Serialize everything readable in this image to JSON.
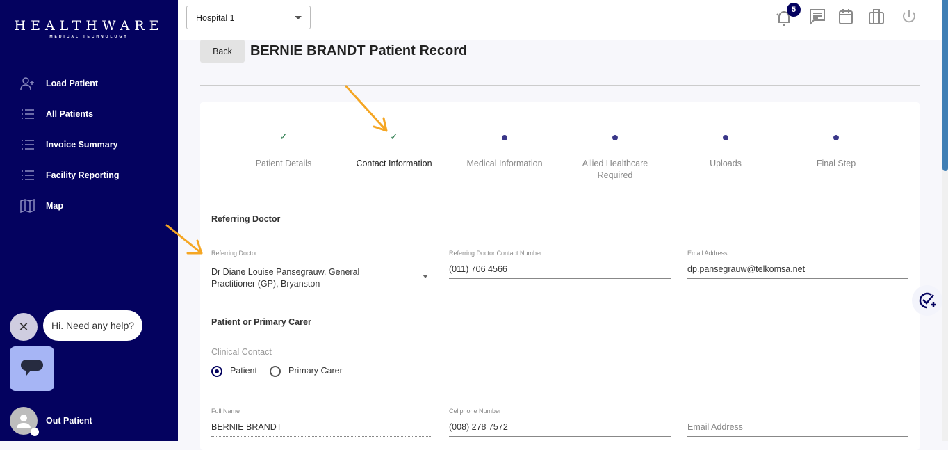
{
  "logo": {
    "title": "HEALTHWARE",
    "subtitle": "MEDICAL TECHNOLOGY"
  },
  "sidebar": {
    "items": [
      {
        "label": "Load Patient",
        "icon": "user-plus-icon"
      },
      {
        "label": "All Patients",
        "icon": "list-icon"
      },
      {
        "label": "Invoice Summary",
        "icon": "list-icon"
      },
      {
        "label": "Facility Reporting",
        "icon": "list-icon"
      },
      {
        "label": "Map",
        "icon": "map-icon"
      }
    ],
    "help_text": "Hi. Need any help?",
    "user": "Out Patient"
  },
  "topbar": {
    "hospital": "Hospital 1",
    "notification_count": "5"
  },
  "page": {
    "back": "Back",
    "title": "BERNIE BRANDT Patient Record"
  },
  "stepper": {
    "steps": [
      {
        "label": "Patient Details",
        "state": "done"
      },
      {
        "label": "Contact Information",
        "state": "done-active"
      },
      {
        "label": "Medical Information",
        "state": "pending"
      },
      {
        "label": "Allied Healthcare Required",
        "state": "pending"
      },
      {
        "label": "Uploads",
        "state": "pending"
      },
      {
        "label": "Final Step",
        "state": "pending"
      }
    ]
  },
  "referring": {
    "section": "Referring Doctor",
    "doctor_label": "Referring Doctor",
    "doctor_value": "Dr Diane Louise Pansegrauw, General Practitioner (GP), Bryanston",
    "contact_label": "Referring Doctor Contact Number",
    "contact_value": "(011) 706 4566",
    "email_label": "Email Address",
    "email_value": "dp.pansegrauw@telkomsa.net"
  },
  "carer": {
    "section": "Patient or Primary Carer",
    "clinical_contact": "Clinical Contact",
    "options": [
      {
        "label": "Patient",
        "selected": true
      },
      {
        "label": "Primary Carer",
        "selected": false
      }
    ],
    "fullname_label": "Full Name",
    "fullname_value": "BERNIE BRANDT",
    "cell_label": "Cellphone Number",
    "cell_value": "(008) 278 7572",
    "email_placeholder": "Email Address"
  },
  "colors": {
    "sidebar": "#04025f",
    "accent": "#3a3789",
    "annotation_arrow": "#f5a623"
  }
}
